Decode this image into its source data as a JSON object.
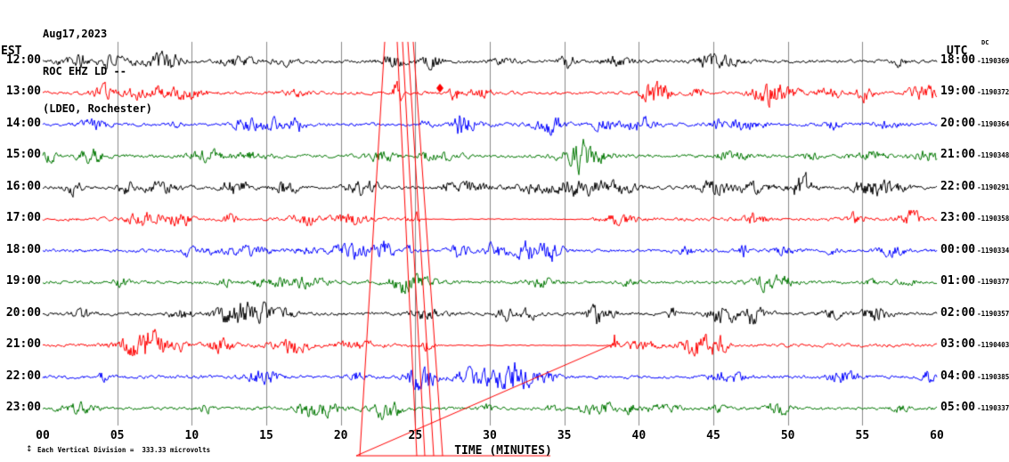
{
  "header": {
    "date": "Aug17,2023",
    "station": "ROC EHZ LD --",
    "location": "(LDEO, Rochester)"
  },
  "axis": {
    "left_tz": "EST",
    "right_tz": "UTC",
    "right_sup": "DC",
    "x_label": "TIME (MINUTES)",
    "x_ticks": [
      "00",
      "05",
      "10",
      "15",
      "20",
      "25",
      "30",
      "35",
      "40",
      "45",
      "50",
      "55",
      "60"
    ]
  },
  "footer": {
    "scale_note": "Each Vertical Division =  333.33 microvolts",
    "scale_icon": "↕"
  },
  "chart_data": {
    "type": "seismogram-helicorder",
    "title": "ROC EHZ LD -- (LDEO, Rochester) Aug17,2023",
    "x_axis": {
      "label": "TIME (MINUTES)",
      "unit": "minutes",
      "min": 0,
      "max": 60,
      "tick_step": 5
    },
    "vertical_division_microvolts": 333.33,
    "grid_color": "#8a8a8a",
    "event_line_color": "#ff0000",
    "palette": [
      "#000000",
      "#ff0000",
      "#0000ff",
      "#007700"
    ],
    "rows": [
      {
        "est": "12:00",
        "utc": "18:00",
        "dc": "-1190369",
        "color": "#000000",
        "seed": 101,
        "n": 18,
        "amp": [
          4,
          10
        ]
      },
      {
        "est": "13:00",
        "utc": "19:00",
        "dc": "-1190372",
        "color": "#ff0000",
        "seed": 102,
        "n": 16,
        "amp": [
          4,
          11
        ],
        "spikes": [
          {
            "m": 23.8,
            "a": 26,
            "w": 0.25
          }
        ]
      },
      {
        "est": "14:00",
        "utc": "20:00",
        "dc": "-1190364",
        "color": "#0000ff",
        "seed": 103,
        "n": 16,
        "amp": [
          4,
          10
        ],
        "spikes": [
          {
            "m": 28.0,
            "a": 20,
            "w": 0.3
          },
          {
            "m": 34.0,
            "a": 12,
            "w": 0.9
          }
        ]
      },
      {
        "est": "15:00",
        "utc": "21:00",
        "dc": "-1190348",
        "color": "#007700",
        "seed": 104,
        "n": 16,
        "amp": [
          3.5,
          9
        ]
      },
      {
        "est": "16:00",
        "utc": "22:00",
        "dc": "-1190291",
        "color": "#000000",
        "seed": 105,
        "n": 20,
        "amp": [
          5,
          11
        ]
      },
      {
        "est": "17:00",
        "utc": "23:00",
        "dc": "-1190358",
        "color": "#ff0000",
        "seed": 106,
        "n": 16,
        "amp": [
          4,
          11
        ],
        "quiet": [
          [
            25.3,
            36.8
          ]
        ]
      },
      {
        "est": "18:00",
        "utc": "00:00",
        "dc": "-1190334",
        "color": "#0000ff",
        "seed": 107,
        "n": 15,
        "amp": [
          4,
          10
        ],
        "spikes": [
          {
            "m": 23.0,
            "a": 12,
            "w": 0.6
          },
          {
            "m": 28.0,
            "a": 11,
            "w": 0.6
          },
          {
            "m": 34.2,
            "a": 12,
            "w": 0.7
          }
        ]
      },
      {
        "est": "19:00",
        "utc": "01:00",
        "dc": "-1190377",
        "color": "#007700",
        "seed": 108,
        "n": 15,
        "amp": [
          3,
          8
        ]
      },
      {
        "est": "20:00",
        "utc": "02:00",
        "dc": "-1190357",
        "color": "#000000",
        "seed": 109,
        "n": 19,
        "amp": [
          5,
          11
        ]
      },
      {
        "est": "21:00",
        "utc": "03:00",
        "dc": "-1190403",
        "color": "#ff0000",
        "seed": 110,
        "n": 15,
        "amp": [
          4,
          11
        ],
        "quiet": [
          [
            27.0,
            38.1
          ]
        ],
        "spikes": [
          {
            "m": 38.35,
            "a": 20,
            "w": 0.15
          }
        ]
      },
      {
        "est": "22:00",
        "utc": "04:00",
        "dc": "-1190385",
        "color": "#0000ff",
        "seed": 111,
        "n": 15,
        "amp": [
          4,
          10
        ],
        "spikes": [
          {
            "m": 25.6,
            "a": 13,
            "w": 0.8
          },
          {
            "m": 31.5,
            "a": 11,
            "w": 0.7
          }
        ]
      },
      {
        "est": "23:00",
        "utc": "05:00",
        "dc": "-1190337",
        "color": "#007700",
        "seed": 112,
        "n": 16,
        "amp": [
          3.5,
          9
        ]
      }
    ],
    "event_lines": [
      [
        432,
        47,
        404,
        512
      ],
      [
        446,
        47,
        468,
        512
      ],
      [
        452,
        47,
        477,
        512
      ],
      [
        458,
        47,
        487,
        512
      ],
      [
        464,
        47,
        497,
        512
      ],
      [
        690,
        386,
        400,
        512
      ],
      [
        400,
        512,
        618,
        512
      ]
    ],
    "event_marker": {
      "x": 494,
      "y": 99
    }
  }
}
